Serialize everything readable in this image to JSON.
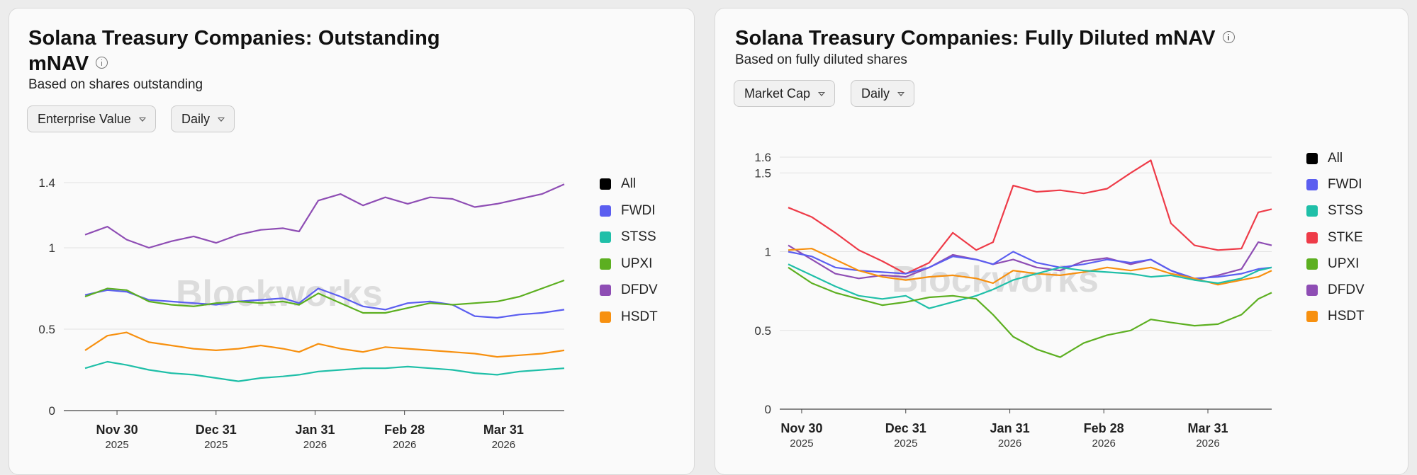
{
  "left": {
    "title_line1": "Solana Treasury Companies: Outstanding",
    "title_line2": "mNAV",
    "subtitle": "Based on shares outstanding",
    "dropdown_metric": "Enterprise Value",
    "dropdown_period": "Daily",
    "watermark": "Blockworks"
  },
  "right": {
    "title": "Solana Treasury Companies: Fully Diluted mNAV",
    "subtitle": "Based on fully diluted shares",
    "dropdown_metric": "Market Cap",
    "dropdown_period": "Daily",
    "watermark": "Blockworks"
  },
  "colors": {
    "All": "#000000",
    "FWDI": "#5b5ef0",
    "STSS": "#1fbfa8",
    "STKE": "#ee3b48",
    "UPXI": "#5caf20",
    "DFDV": "#8e4db4",
    "HSDT": "#f7900f"
  },
  "chart_data": [
    {
      "type": "line",
      "title": "Solana Treasury Companies: Outstanding mNAV",
      "ylim": [
        0,
        1.4
      ],
      "yticks": [
        "0",
        "0.5",
        "1",
        "1.4"
      ],
      "xticks": [
        {
          "label": "Nov 30",
          "year": "2025",
          "date": "2025-11-30"
        },
        {
          "label": "Dec 31",
          "year": "2025",
          "date": "2025-12-31"
        },
        {
          "label": "Jan 31",
          "year": "2026",
          "date": "2026-01-31"
        },
        {
          "label": "Feb 28",
          "year": "2026",
          "date": "2026-02-28"
        },
        {
          "label": "Mar 31",
          "year": "2026",
          "date": "2026-03-31"
        }
      ],
      "x_start": "2025-11-20",
      "x_end": "2026-04-19",
      "legend": [
        "All",
        "FWDI",
        "STSS",
        "UPXI",
        "DFDV",
        "HSDT"
      ],
      "grid": true,
      "legend_position": "right",
      "series": [
        {
          "name": "DFDV",
          "dates": [
            "2025-11-20",
            "2025-11-27",
            "2025-12-03",
            "2025-12-10",
            "2025-12-17",
            "2025-12-24",
            "2025-12-31",
            "2026-01-07",
            "2026-01-14",
            "2026-01-21",
            "2026-01-26",
            "2026-02-01",
            "2026-02-08",
            "2026-02-15",
            "2026-02-22",
            "2026-03-01",
            "2026-03-08",
            "2026-03-15",
            "2026-03-22",
            "2026-03-29",
            "2026-04-05",
            "2026-04-12",
            "2026-04-19"
          ],
          "values": [
            1.08,
            1.13,
            1.05,
            1.0,
            1.04,
            1.07,
            1.03,
            1.08,
            1.11,
            1.12,
            1.1,
            1.29,
            1.33,
            1.26,
            1.31,
            1.27,
            1.31,
            1.3,
            1.25,
            1.27,
            1.3,
            1.33,
            1.39
          ]
        },
        {
          "name": "FWDI",
          "dates": [
            "2025-11-20",
            "2025-11-27",
            "2025-12-03",
            "2025-12-10",
            "2025-12-17",
            "2025-12-24",
            "2025-12-31",
            "2026-01-07",
            "2026-01-14",
            "2026-01-21",
            "2026-01-26",
            "2026-02-01",
            "2026-02-08",
            "2026-02-15",
            "2026-02-22",
            "2026-03-01",
            "2026-03-08",
            "2026-03-15",
            "2026-03-22",
            "2026-03-29",
            "2026-04-05",
            "2026-04-12",
            "2026-04-19"
          ],
          "values": [
            0.71,
            0.74,
            0.73,
            0.68,
            0.67,
            0.66,
            0.65,
            0.67,
            0.68,
            0.69,
            0.66,
            0.75,
            0.7,
            0.64,
            0.62,
            0.66,
            0.67,
            0.65,
            0.58,
            0.57,
            0.59,
            0.6,
            0.62
          ]
        },
        {
          "name": "UPXI",
          "dates": [
            "2025-11-20",
            "2025-11-27",
            "2025-12-03",
            "2025-12-10",
            "2025-12-17",
            "2025-12-24",
            "2025-12-31",
            "2026-01-07",
            "2026-01-14",
            "2026-01-21",
            "2026-01-26",
            "2026-02-01",
            "2026-02-08",
            "2026-02-15",
            "2026-02-22",
            "2026-03-01",
            "2026-03-08",
            "2026-03-15",
            "2026-03-22",
            "2026-03-29",
            "2026-04-05",
            "2026-04-12",
            "2026-04-19"
          ],
          "values": [
            0.7,
            0.75,
            0.74,
            0.67,
            0.65,
            0.64,
            0.66,
            0.67,
            0.66,
            0.67,
            0.65,
            0.72,
            0.66,
            0.6,
            0.6,
            0.63,
            0.66,
            0.65,
            0.66,
            0.67,
            0.7,
            0.75,
            0.8
          ]
        },
        {
          "name": "HSDT",
          "dates": [
            "2025-11-20",
            "2025-11-27",
            "2025-12-03",
            "2025-12-10",
            "2025-12-17",
            "2025-12-24",
            "2025-12-31",
            "2026-01-07",
            "2026-01-14",
            "2026-01-21",
            "2026-01-26",
            "2026-02-01",
            "2026-02-08",
            "2026-02-15",
            "2026-02-22",
            "2026-03-01",
            "2026-03-08",
            "2026-03-15",
            "2026-03-22",
            "2026-03-29",
            "2026-04-05",
            "2026-04-12",
            "2026-04-19"
          ],
          "values": [
            0.37,
            0.46,
            0.48,
            0.42,
            0.4,
            0.38,
            0.37,
            0.38,
            0.4,
            0.38,
            0.36,
            0.41,
            0.38,
            0.36,
            0.39,
            0.38,
            0.37,
            0.36,
            0.35,
            0.33,
            0.34,
            0.35,
            0.37
          ]
        },
        {
          "name": "STSS",
          "dates": [
            "2025-11-20",
            "2025-11-27",
            "2025-12-03",
            "2025-12-10",
            "2025-12-17",
            "2025-12-24",
            "2025-12-31",
            "2026-01-07",
            "2026-01-14",
            "2026-01-21",
            "2026-01-26",
            "2026-02-01",
            "2026-02-08",
            "2026-02-15",
            "2026-02-22",
            "2026-03-01",
            "2026-03-08",
            "2026-03-15",
            "2026-03-22",
            "2026-03-29",
            "2026-04-05",
            "2026-04-12",
            "2026-04-19"
          ],
          "values": [
            0.26,
            0.3,
            0.28,
            0.25,
            0.23,
            0.22,
            0.2,
            0.18,
            0.2,
            0.21,
            0.22,
            0.24,
            0.25,
            0.26,
            0.26,
            0.27,
            0.26,
            0.25,
            0.23,
            0.22,
            0.24,
            0.25,
            0.26
          ]
        }
      ]
    },
    {
      "type": "line",
      "title": "Solana Treasury Companies: Fully Diluted mNAV",
      "ylim": [
        0,
        1.6
      ],
      "yticks": [
        "0",
        "0.5",
        "1",
        "1.5",
        "1.6"
      ],
      "xticks": [
        {
          "label": "Nov 30",
          "year": "2025",
          "date": "2025-11-30"
        },
        {
          "label": "Dec 31",
          "year": "2025",
          "date": "2025-12-31"
        },
        {
          "label": "Jan 31",
          "year": "2026",
          "date": "2026-01-31"
        },
        {
          "label": "Feb 28",
          "year": "2026",
          "date": "2026-02-28"
        },
        {
          "label": "Mar 31",
          "year": "2026",
          "date": "2026-03-31"
        }
      ],
      "x_start": "2025-11-26",
      "x_end": "2026-04-19",
      "legend": [
        "All",
        "FWDI",
        "STSS",
        "STKE",
        "UPXI",
        "DFDV",
        "HSDT"
      ],
      "grid": true,
      "legend_position": "right",
      "series": [
        {
          "name": "STKE",
          "dates": [
            "2025-11-26",
            "2025-12-03",
            "2025-12-10",
            "2025-12-17",
            "2025-12-24",
            "2025-12-31",
            "2026-01-07",
            "2026-01-14",
            "2026-01-21",
            "2026-01-26",
            "2026-02-01",
            "2026-02-08",
            "2026-02-15",
            "2026-02-22",
            "2026-03-01",
            "2026-03-08",
            "2026-03-14",
            "2026-03-20",
            "2026-03-27",
            "2026-04-03",
            "2026-04-10",
            "2026-04-15",
            "2026-04-19"
          ],
          "values": [
            1.28,
            1.22,
            1.12,
            1.01,
            0.94,
            0.86,
            0.93,
            1.12,
            1.01,
            1.06,
            1.42,
            1.38,
            1.39,
            1.37,
            1.4,
            1.5,
            1.58,
            1.18,
            1.04,
            1.01,
            1.02,
            1.25,
            1.27
          ]
        },
        {
          "name": "DFDV",
          "dates": [
            "2025-11-26",
            "2025-12-03",
            "2025-12-10",
            "2025-12-17",
            "2025-12-24",
            "2025-12-31",
            "2026-01-07",
            "2026-01-14",
            "2026-01-21",
            "2026-01-26",
            "2026-02-01",
            "2026-02-08",
            "2026-02-15",
            "2026-02-22",
            "2026-03-01",
            "2026-03-08",
            "2026-03-14",
            "2026-03-20",
            "2026-03-27",
            "2026-04-03",
            "2026-04-10",
            "2026-04-15",
            "2026-04-19"
          ],
          "values": [
            1.04,
            0.95,
            0.86,
            0.83,
            0.85,
            0.84,
            0.9,
            0.98,
            0.95,
            0.92,
            0.95,
            0.9,
            0.88,
            0.94,
            0.96,
            0.92,
            0.95,
            0.88,
            0.82,
            0.85,
            0.89,
            1.06,
            1.04
          ]
        },
        {
          "name": "FWDI",
          "dates": [
            "2025-11-26",
            "2025-12-03",
            "2025-12-10",
            "2025-12-17",
            "2025-12-24",
            "2025-12-31",
            "2026-01-07",
            "2026-01-14",
            "2026-01-21",
            "2026-01-26",
            "2026-02-01",
            "2026-02-08",
            "2026-02-15",
            "2026-02-22",
            "2026-03-01",
            "2026-03-08",
            "2026-03-14",
            "2026-03-20",
            "2026-03-27",
            "2026-04-03",
            "2026-04-10",
            "2026-04-15",
            "2026-04-19"
          ],
          "values": [
            1.0,
            0.97,
            0.9,
            0.88,
            0.87,
            0.86,
            0.9,
            0.97,
            0.95,
            0.92,
            1.0,
            0.93,
            0.9,
            0.92,
            0.95,
            0.93,
            0.95,
            0.88,
            0.83,
            0.84,
            0.86,
            0.89,
            0.9
          ]
        },
        {
          "name": "HSDT",
          "dates": [
            "2025-11-26",
            "2025-12-03",
            "2025-12-10",
            "2025-12-17",
            "2025-12-24",
            "2025-12-31",
            "2026-01-07",
            "2026-01-14",
            "2026-01-21",
            "2026-01-26",
            "2026-02-01",
            "2026-02-08",
            "2026-02-15",
            "2026-02-22",
            "2026-03-01",
            "2026-03-08",
            "2026-03-14",
            "2026-03-20",
            "2026-03-27",
            "2026-04-03",
            "2026-04-10",
            "2026-04-15",
            "2026-04-19"
          ],
          "values": [
            1.01,
            1.02,
            0.95,
            0.88,
            0.84,
            0.82,
            0.84,
            0.85,
            0.83,
            0.8,
            0.88,
            0.86,
            0.85,
            0.87,
            0.9,
            0.88,
            0.9,
            0.86,
            0.83,
            0.79,
            0.82,
            0.84,
            0.88
          ]
        },
        {
          "name": "STSS",
          "dates": [
            "2025-11-26",
            "2025-12-03",
            "2025-12-10",
            "2025-12-17",
            "2025-12-24",
            "2025-12-31",
            "2026-01-07",
            "2026-01-14",
            "2026-01-21",
            "2026-01-26",
            "2026-02-01",
            "2026-02-08",
            "2026-02-15",
            "2026-02-22",
            "2026-03-01",
            "2026-03-08",
            "2026-03-14",
            "2026-03-20",
            "2026-03-27",
            "2026-04-03",
            "2026-04-10",
            "2026-04-15",
            "2026-04-19"
          ],
          "values": [
            0.92,
            0.85,
            0.78,
            0.72,
            0.7,
            0.72,
            0.64,
            0.68,
            0.72,
            0.76,
            0.82,
            0.86,
            0.9,
            0.88,
            0.87,
            0.86,
            0.84,
            0.85,
            0.82,
            0.8,
            0.83,
            0.88,
            0.9
          ]
        },
        {
          "name": "UPXI",
          "dates": [
            "2025-11-26",
            "2025-12-03",
            "2025-12-10",
            "2025-12-17",
            "2025-12-24",
            "2025-12-31",
            "2026-01-07",
            "2026-01-14",
            "2026-01-21",
            "2026-01-26",
            "2026-02-01",
            "2026-02-08",
            "2026-02-15",
            "2026-02-22",
            "2026-03-01",
            "2026-03-08",
            "2026-03-14",
            "2026-03-20",
            "2026-03-27",
            "2026-04-03",
            "2026-04-10",
            "2026-04-15",
            "2026-04-19"
          ],
          "values": [
            0.9,
            0.8,
            0.74,
            0.7,
            0.66,
            0.68,
            0.71,
            0.72,
            0.7,
            0.6,
            0.46,
            0.38,
            0.33,
            0.42,
            0.47,
            0.5,
            0.57,
            0.55,
            0.53,
            0.54,
            0.6,
            0.7,
            0.74
          ]
        }
      ]
    }
  ]
}
